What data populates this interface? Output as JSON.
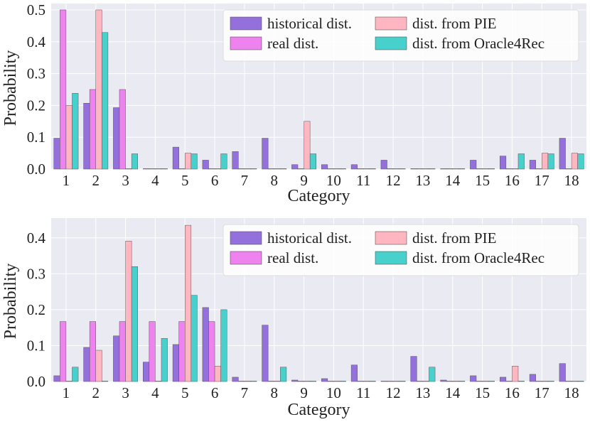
{
  "colors": {
    "background": "#eaeaf2",
    "grid": "#ffffff",
    "historical": "#9370db",
    "real": "#ee82ee",
    "pie": "#ffb6c1",
    "oracle": "#48d1cc"
  },
  "chart_data": [
    {
      "type": "bar",
      "xlabel": "Category",
      "ylabel": "Probability",
      "ylim": [
        0,
        0.52
      ],
      "yticks": [
        0.0,
        0.1,
        0.2,
        0.3,
        0.4,
        0.5
      ],
      "ytick_labels": [
        "0.0",
        "0.1",
        "0.2",
        "0.3",
        "0.4",
        "0.5"
      ],
      "grid": true,
      "legend": "top-right",
      "categories": [
        "1",
        "2",
        "3",
        "4",
        "5",
        "6",
        "7",
        "8",
        "9",
        "10",
        "11",
        "12",
        "13",
        "14",
        "15",
        "16",
        "17",
        "18"
      ],
      "series": [
        {
          "name": "historical dist.",
          "color_key": "historical",
          "values": [
            0.097,
            0.207,
            0.193,
            0.001,
            0.069,
            0.028,
            0.055,
            0.097,
            0.014,
            0.014,
            0.014,
            0.028,
            0.001,
            0.001,
            0.028,
            0.041,
            0.028,
            0.097
          ]
        },
        {
          "name": "real dist.",
          "color_key": "real",
          "values": [
            0.5,
            0.25,
            0.25,
            0,
            0,
            0,
            0,
            0,
            0,
            0,
            0,
            0,
            0,
            0,
            0,
            0,
            0,
            0
          ]
        },
        {
          "name": "dist. from PIE",
          "color_key": "pie",
          "values": [
            0.2,
            0.5,
            0.001,
            0.001,
            0.05,
            0.001,
            0.001,
            0.001,
            0.15,
            0.001,
            0.001,
            0.001,
            0.001,
            0.001,
            0.001,
            0.001,
            0.05,
            0.05
          ]
        },
        {
          "name": "dist. from Oracle4Rec",
          "color_key": "oracle",
          "values": [
            0.238,
            0.429,
            0.048,
            0.001,
            0.048,
            0.048,
            0.001,
            0.001,
            0.048,
            0.001,
            0.001,
            0.001,
            0.001,
            0.001,
            0.001,
            0.048,
            0.048,
            0.048
          ]
        }
      ]
    },
    {
      "type": "bar",
      "xlabel": "Category",
      "ylabel": "Probability",
      "ylim": [
        0,
        0.455
      ],
      "yticks": [
        0.0,
        0.1,
        0.2,
        0.3,
        0.4
      ],
      "ytick_labels": [
        "0.0",
        "0.1",
        "0.2",
        "0.3",
        "0.4"
      ],
      "grid": true,
      "legend": "top-right",
      "categories": [
        "1",
        "2",
        "3",
        "4",
        "5",
        "6",
        "7",
        "8",
        "9",
        "10",
        "11",
        "12",
        "13",
        "14",
        "15",
        "16",
        "17",
        "18"
      ],
      "series": [
        {
          "name": "historical dist.",
          "color_key": "historical",
          "values": [
            0.016,
            0.095,
            0.127,
            0.054,
            0.103,
            0.206,
            0.012,
            0.157,
            0.004,
            0.008,
            0.046,
            0.001,
            0.07,
            0.004,
            0.016,
            0.012,
            0.02,
            0.05
          ]
        },
        {
          "name": "real dist.",
          "color_key": "real",
          "values": [
            0.167,
            0.167,
            0.167,
            0.167,
            0.167,
            0.167,
            0,
            0,
            0,
            0,
            0,
            0,
            0,
            0,
            0,
            0,
            0,
            0
          ]
        },
        {
          "name": "dist. from PIE",
          "color_key": "pie",
          "values": [
            0.001,
            0.087,
            0.391,
            0.001,
            0.435,
            0.043,
            0.001,
            0.001,
            0.001,
            0.001,
            0.001,
            0.001,
            0.001,
            0.001,
            0.001,
            0.043,
            0.001,
            0.001
          ]
        },
        {
          "name": "dist. from Oracle4Rec",
          "color_key": "oracle",
          "values": [
            0.04,
            0.001,
            0.32,
            0.12,
            0.24,
            0.2,
            0.001,
            0.04,
            0.001,
            0.001,
            0.001,
            0.001,
            0.04,
            0.001,
            0.001,
            0.001,
            0.001,
            0.001
          ]
        }
      ]
    }
  ]
}
